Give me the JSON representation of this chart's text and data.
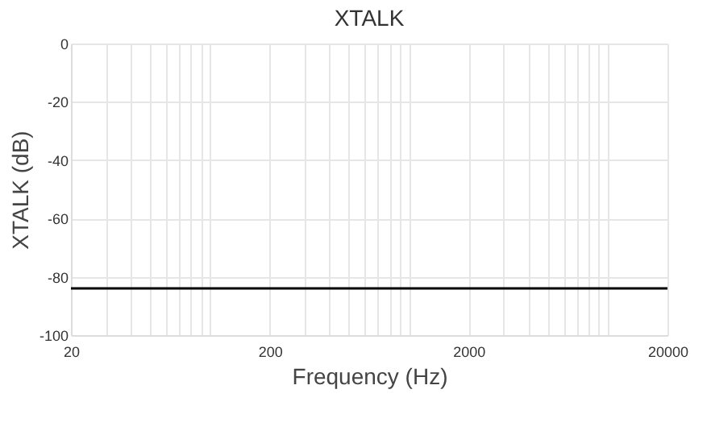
{
  "chart_data": {
    "type": "line",
    "title": "XTALK",
    "xlabel": "Frequency (Hz)",
    "ylabel": "XTALK (dB)",
    "x": [
      20,
      20000
    ],
    "series": [
      {
        "color": "#000000",
        "values": [
          -84,
          -84
        ]
      }
    ],
    "log": "x",
    "xlim": [
      20,
      20000
    ],
    "ylim": [
      -100,
      0
    ],
    "xticks": [
      20,
      {
        "value": 30,
        "label": null
      },
      {
        "value": 40,
        "label": null
      },
      {
        "value": 50,
        "label": null
      },
      {
        "value": 60,
        "label": null
      },
      {
        "value": 70,
        "label": null
      },
      {
        "value": 80,
        "label": null
      },
      {
        "value": 90,
        "label": null
      },
      {
        "value": 100,
        "label": null
      },
      200,
      {
        "value": 300,
        "label": null
      },
      {
        "value": 400,
        "label": null
      },
      {
        "value": 500,
        "label": null
      },
      {
        "value": 600,
        "label": null
      },
      {
        "value": 700,
        "label": null
      },
      {
        "value": 800,
        "label": null
      },
      {
        "value": 900,
        "label": null
      },
      {
        "value": 1000,
        "label": null
      },
      2000,
      {
        "value": 3000,
        "label": null
      },
      {
        "value": 4000,
        "label": null
      },
      {
        "value": 5000,
        "label": null
      },
      {
        "value": 6000,
        "label": null
      },
      {
        "value": 7000,
        "label": null
      },
      {
        "value": 8000,
        "label": null
      },
      {
        "value": 9000,
        "label": null
      },
      {
        "value": 10000,
        "label": null
      },
      20000
    ],
    "yticks": [
      0,
      -20,
      -40,
      -60,
      -80,
      -100
    ],
    "grid": true,
    "legend": false,
    "marker": "none",
    "line_style": "solid"
  }
}
